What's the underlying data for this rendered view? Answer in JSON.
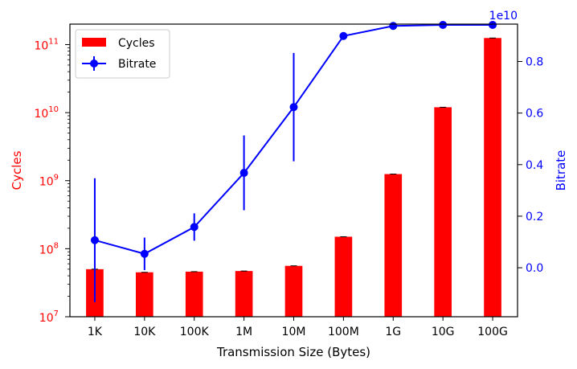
{
  "chart_data": {
    "type": "bar+line",
    "xlabel": "Transmission Size (Bytes)",
    "categories": [
      "1K",
      "10K",
      "100K",
      "1M",
      "10M",
      "100M",
      "1G",
      "10G",
      "100G"
    ],
    "left_axis": {
      "label": "Cycles",
      "scale": "log",
      "ylim": [
        10000000,
        200000000000
      ],
      "ticks": [
        10000000,
        100000000,
        1000000000,
        10000000000,
        100000000000
      ],
      "tick_labels": [
        [
          "10",
          "7"
        ],
        [
          "10",
          "8"
        ],
        [
          "10",
          "9"
        ],
        [
          "10",
          "10"
        ],
        [
          "10",
          "11"
        ]
      ],
      "color": "#ff0000"
    },
    "right_axis": {
      "label": "Bitrate",
      "scale": "linear",
      "multiplier": "1e10",
      "ylim": [
        -1900000000,
        9450000000
      ],
      "ticks": [
        0,
        2000000000,
        4000000000,
        6000000000,
        8000000000
      ],
      "tick_labels": [
        "0.0",
        "0.2",
        "0.4",
        "0.6",
        "0.8"
      ],
      "color": "#0000ff"
    },
    "series": [
      {
        "name": "Cycles",
        "type": "bar",
        "axis": "left",
        "color": "#ff0000",
        "values": [
          50000000,
          45000000,
          46000000,
          47000000,
          56000000,
          150000000,
          1250000000,
          12000000000,
          125000000000
        ]
      },
      {
        "name": "Bitrate",
        "type": "line",
        "axis": "right",
        "color": "#0000ff",
        "values": [
          1070000000,
          540000000,
          1580000000,
          3680000000,
          6230000000,
          8990000000,
          9380000000,
          9420000000,
          9420000000
        ],
        "error": [
          2400000000,
          630000000,
          530000000,
          1450000000,
          2100000000,
          0,
          0,
          0,
          0
        ]
      }
    ],
    "legend": {
      "position": "top-left",
      "entries": [
        "Cycles",
        "Bitrate"
      ]
    },
    "grid": false
  }
}
